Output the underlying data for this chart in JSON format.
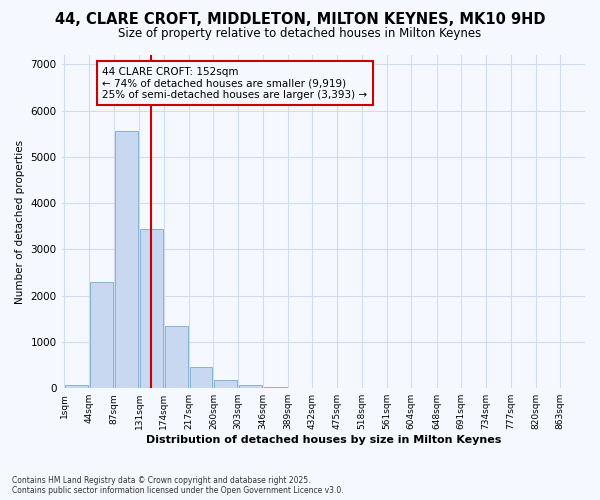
{
  "title_line1": "44, CLARE CROFT, MIDDLETON, MILTON KEYNES, MK10 9HD",
  "title_line2": "Size of property relative to detached houses in Milton Keynes",
  "xlabel": "Distribution of detached houses by size in Milton Keynes",
  "ylabel": "Number of detached properties",
  "bar_bins": [
    1,
    44,
    87,
    131,
    174,
    217,
    260,
    303,
    346,
    389,
    432,
    475,
    518,
    561,
    604,
    648,
    691,
    734,
    777,
    820,
    863
  ],
  "bar_heights": [
    60,
    2300,
    5550,
    3450,
    1350,
    460,
    175,
    80,
    25,
    10,
    0,
    0,
    0,
    0,
    0,
    0,
    0,
    0,
    0,
    0
  ],
  "bar_color": "#c8d8f0",
  "bar_edge_color": "#7aabcc",
  "property_size": 152,
  "vline_color": "#cc0000",
  "annotation_box_color": "#cc0000",
  "annotation_text_line1": "44 CLARE CROFT: 152sqm",
  "annotation_text_line2": "← 74% of detached houses are smaller (9,919)",
  "annotation_text_line3": "25% of semi-detached houses are larger (3,393) →",
  "ylim": [
    0,
    7200
  ],
  "yticks": [
    0,
    1000,
    2000,
    3000,
    4000,
    5000,
    6000,
    7000
  ],
  "background_color": "#f5f8ff",
  "grid_color": "#d0ddf0",
  "footer_line1": "Contains HM Land Registry data © Crown copyright and database right 2025.",
  "footer_line2": "Contains public sector information licensed under the Open Government Licence v3.0."
}
